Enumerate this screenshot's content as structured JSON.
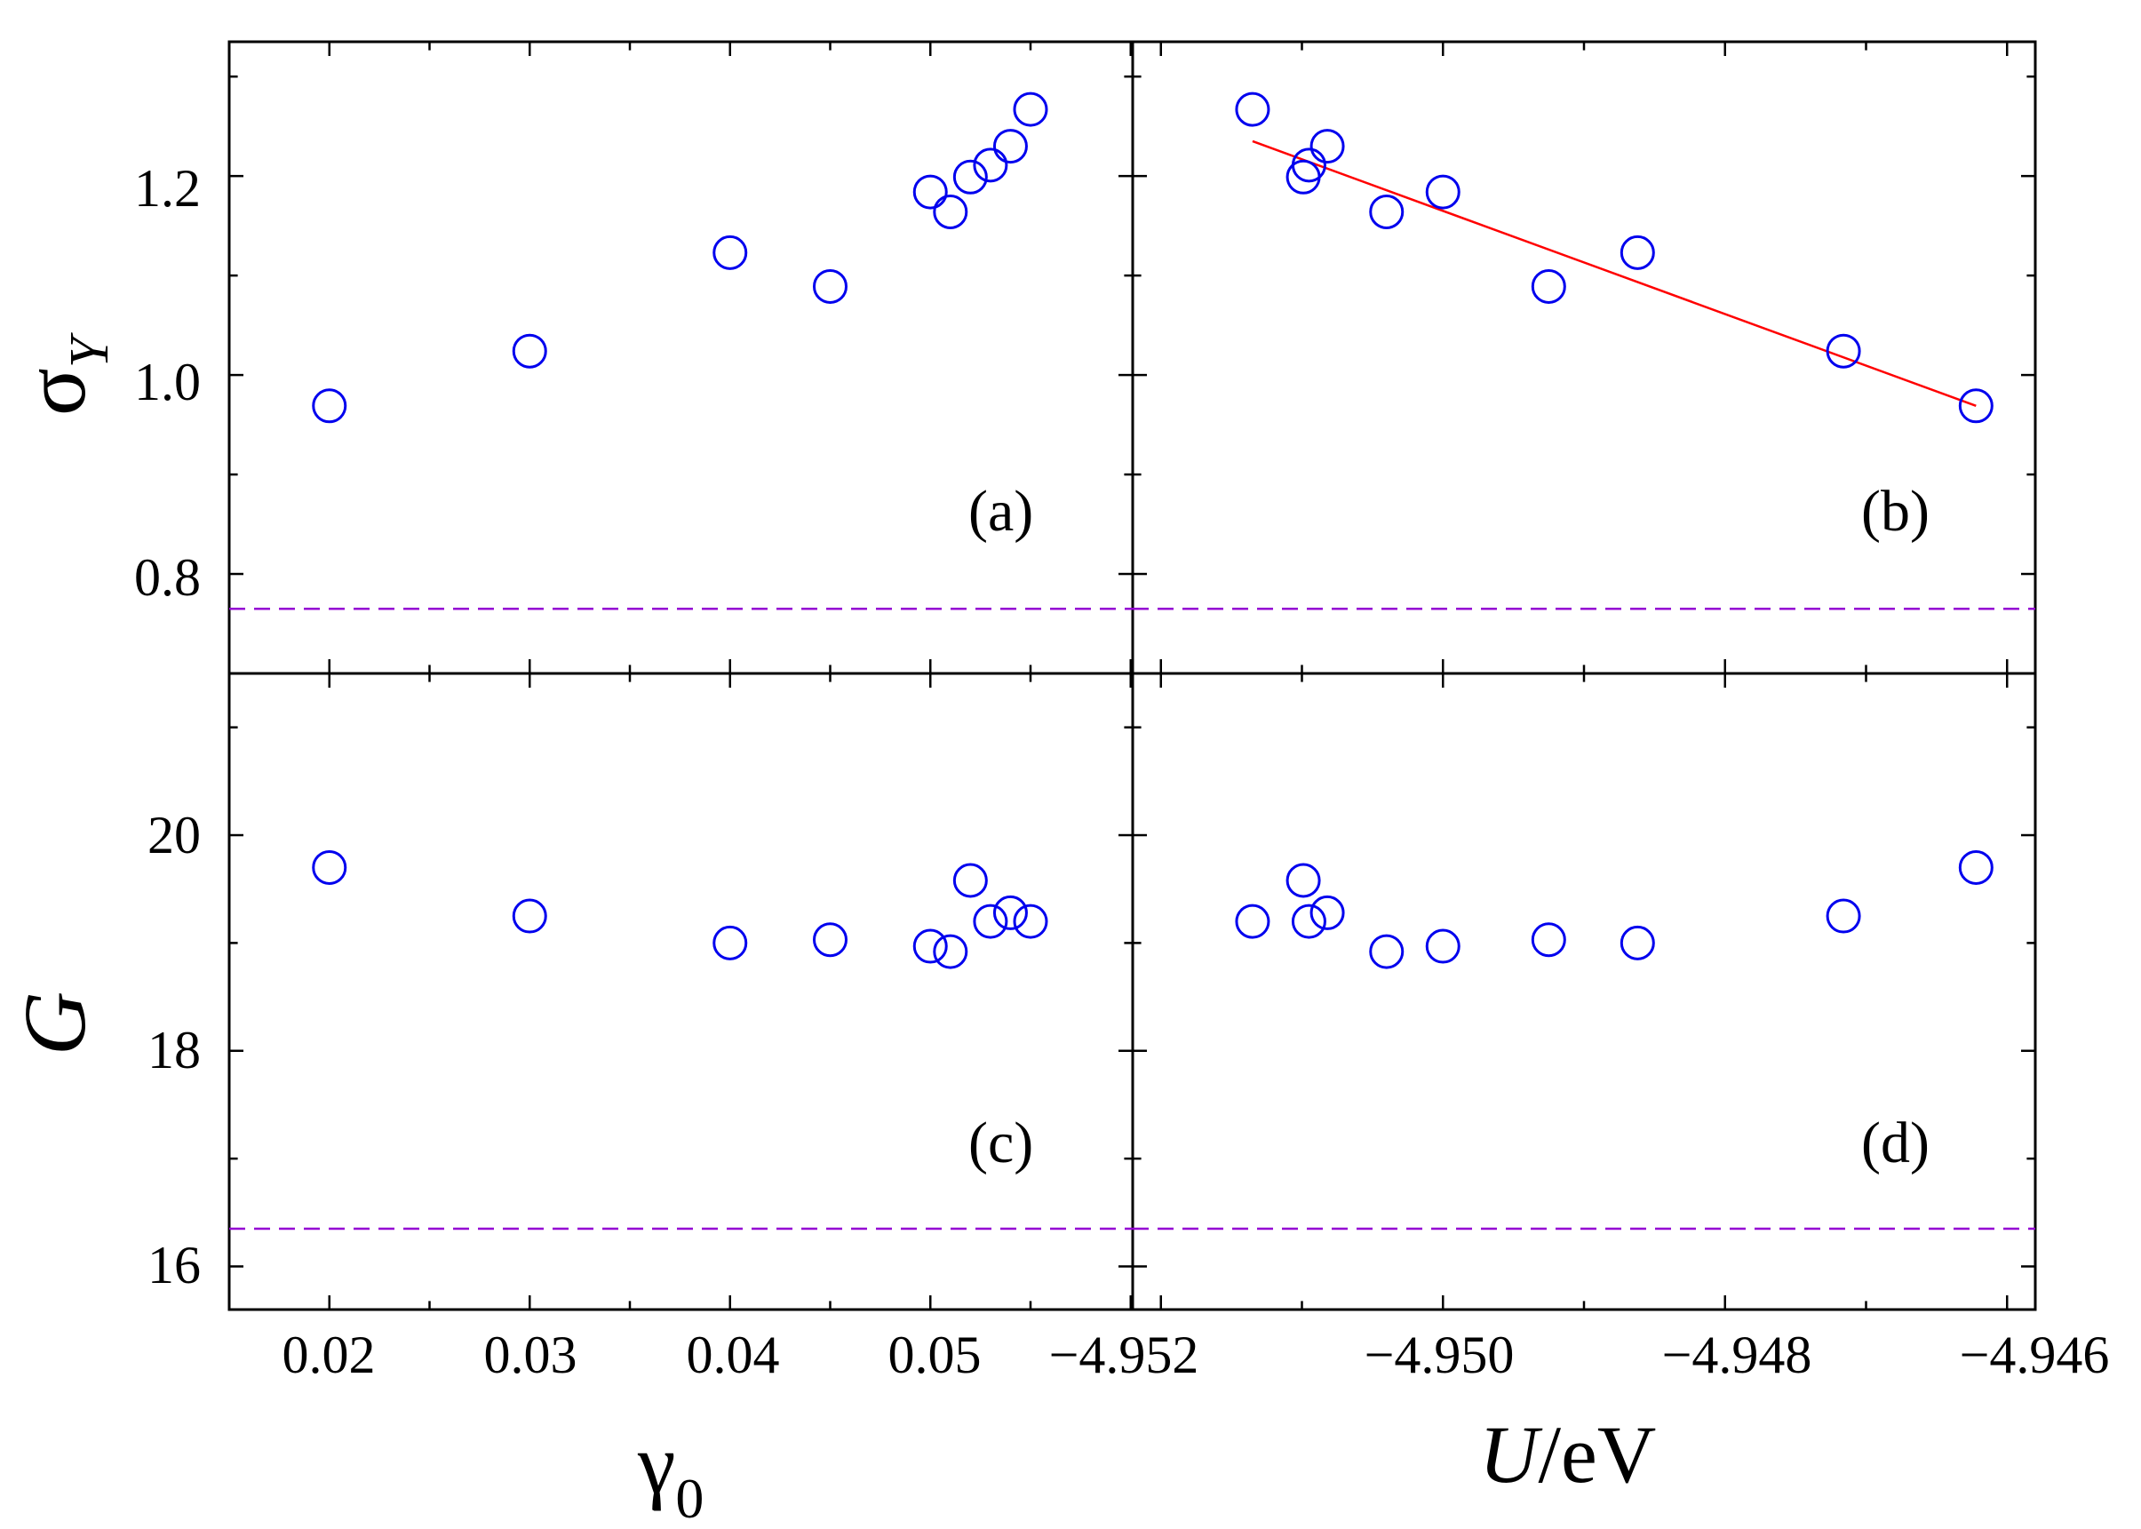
{
  "chart_data": [
    {
      "panel": "(a)",
      "type": "scatter",
      "xlabel": "γ0",
      "ylabel": "σY",
      "xlim": [
        0.015,
        0.0601
      ],
      "ylim": [
        0.7,
        1.335
      ],
      "xticks": [
        0.02,
        0.03,
        0.04,
        0.05
      ],
      "yticks": [
        0.8,
        1.0,
        1.2
      ],
      "x": [
        0.02,
        0.03,
        0.04,
        0.045,
        0.05,
        0.051,
        0.052,
        0.053,
        0.054,
        0.055
      ],
      "y": [
        0.969,
        1.024,
        1.123,
        1.089,
        1.184,
        1.164,
        1.199,
        1.211,
        1.23,
        1.267
      ],
      "reference_line": 0.765
    },
    {
      "panel": "(b)",
      "type": "scatter",
      "xlabel": "U/eV",
      "ylabel": "σY",
      "xlim": [
        -4.9522,
        -4.9458
      ],
      "ylim": [
        0.7,
        1.335
      ],
      "xticks": [
        -4.952,
        -4.95,
        -4.948,
        -4.946
      ],
      "yticks": [
        0.8,
        1.0,
        1.2
      ],
      "x": [
        -4.95135,
        -4.95099,
        -4.95095,
        -4.95082,
        -4.9504,
        -4.95,
        -4.94925,
        -4.94862,
        -4.94716,
        -4.94622
      ],
      "y": [
        1.267,
        1.199,
        1.211,
        1.23,
        1.164,
        1.184,
        1.089,
        1.123,
        1.024,
        0.969
      ],
      "fit_line": {
        "x": [
          -4.95135,
          -4.94622
        ],
        "y": [
          1.235,
          0.969
        ]
      },
      "reference_line": 0.765
    },
    {
      "panel": "(c)",
      "type": "scatter",
      "xlabel": "γ0",
      "ylabel": "G",
      "xlim": [
        0.015,
        0.0601
      ],
      "ylim": [
        15.6,
        21.5
      ],
      "xticks": [
        0.02,
        0.03,
        0.04,
        0.045,
        0.05
      ],
      "xtick_labels": [
        "0.02",
        "0.03",
        "0.04",
        "",
        "0.05"
      ],
      "yticks": [
        16,
        18,
        20
      ],
      "x": [
        0.02,
        0.03,
        0.04,
        0.045,
        0.05,
        0.051,
        0.052,
        0.053,
        0.054,
        0.055
      ],
      "y": [
        19.7,
        19.25,
        19.0,
        19.03,
        18.97,
        18.92,
        19.58,
        19.2,
        19.28,
        19.2
      ],
      "reference_line": 16.35
    },
    {
      "panel": "(d)",
      "type": "scatter",
      "xlabel": "U/eV",
      "ylabel": "G",
      "xlim": [
        -4.9522,
        -4.9458
      ],
      "ylim": [
        15.6,
        21.5
      ],
      "xticks": [
        -4.952,
        -4.95,
        -4.948,
        -4.946
      ],
      "yticks": [
        16,
        18,
        20
      ],
      "x": [
        -4.95135,
        -4.95099,
        -4.95095,
        -4.95082,
        -4.9504,
        -4.95,
        -4.94925,
        -4.94862,
        -4.94716,
        -4.94622
      ],
      "y": [
        19.2,
        19.58,
        19.2,
        19.28,
        18.92,
        18.97,
        19.03,
        19.0,
        19.25,
        19.7
      ],
      "reference_line": 16.35
    }
  ],
  "labels": {
    "panel_a": "(a)",
    "panel_b": "(b)",
    "panel_c": "(c)",
    "panel_d": "(d)",
    "x_gamma_sym": "γ",
    "x_gamma_sub": "0",
    "x_u_sym": "U",
    "x_u_unit": "/eV",
    "y_sigma_sym": "σ",
    "y_sigma_sub": "Y",
    "y_g_sym": "G"
  },
  "tick_text": {
    "left_x": [
      "0.02",
      "0.03",
      "0.04",
      "0.05"
    ],
    "right_x": [
      "−4.952",
      "−4.950",
      "−4.948",
      "−4.946"
    ],
    "top_y": [
      "0.8",
      "1.0",
      "1.2"
    ],
    "bottom_y": [
      "16",
      "18",
      "20"
    ]
  },
  "colors": {
    "points": "#0000ee",
    "fit_line": "#ff0000",
    "reference_line": "#9400d3"
  }
}
